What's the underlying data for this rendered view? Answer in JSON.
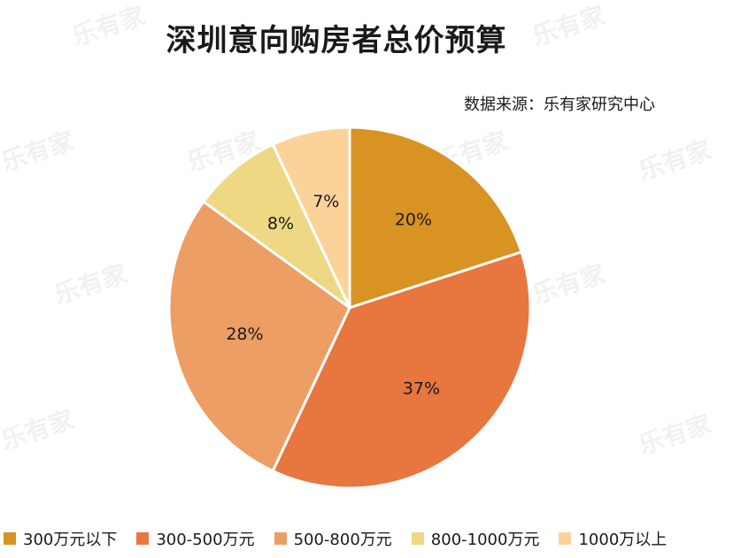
{
  "title": "深圳意向购房者总价预算",
  "source_text": "数据来源：乐有家研究中心",
  "watermark_text": "乐有家",
  "chart_data": {
    "type": "pie",
    "title": "深圳意向购房者总价预算",
    "categories": [
      "300万元以下",
      "300-500万元",
      "500-800万元",
      "800-1000万元",
      "1000万以上"
    ],
    "values": [
      20,
      37,
      28,
      8,
      7
    ],
    "labels": [
      "20%",
      "37%",
      "28%",
      "8%",
      "7%"
    ],
    "colors": [
      "#D89323",
      "#E8763F",
      "#EC9E65",
      "#EED884",
      "#FBD39A"
    ],
    "legend_position": "bottom",
    "start_angle_deg": 0,
    "direction": "clockwise"
  }
}
